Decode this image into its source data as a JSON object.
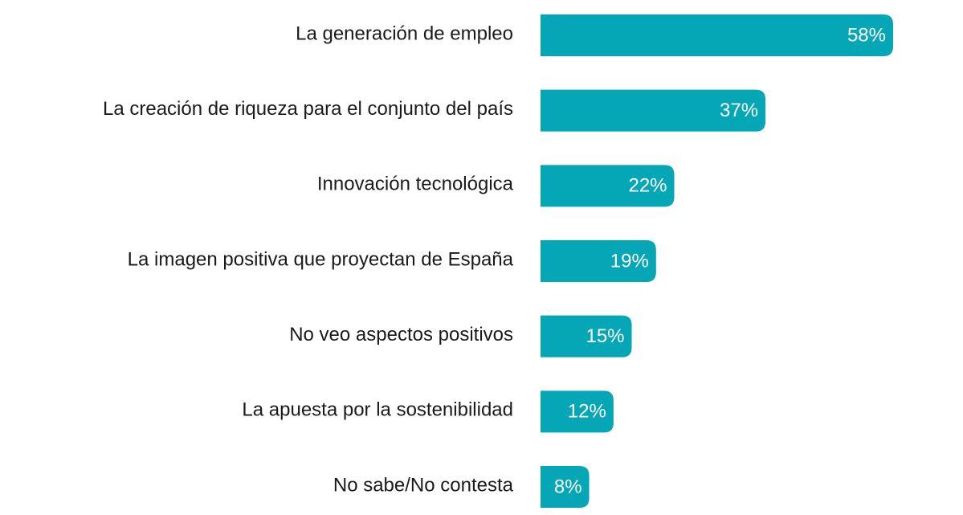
{
  "colors": {
    "bar": "#05a6b5",
    "label_text": "#1a1a1a",
    "value_text": "#ffffff",
    "background": "#ffffff"
  },
  "chart_data": {
    "type": "bar",
    "orientation": "horizontal",
    "categories": [
      "La generación de empleo",
      "La creación de riqueza para el conjunto del país",
      "Innovación tecnológica",
      "La imagen positiva que proyectan de España",
      "No veo aspectos positivos",
      "La apuesta por la sostenibilidad",
      "No sabe/No contesta"
    ],
    "values": [
      58,
      37,
      22,
      19,
      15,
      12,
      8
    ],
    "value_labels": [
      "58%",
      "37%",
      "22%",
      "19%",
      "15%",
      "12%",
      "8%"
    ],
    "xlim": [
      0,
      58
    ],
    "grid": false,
    "legend": "none"
  }
}
